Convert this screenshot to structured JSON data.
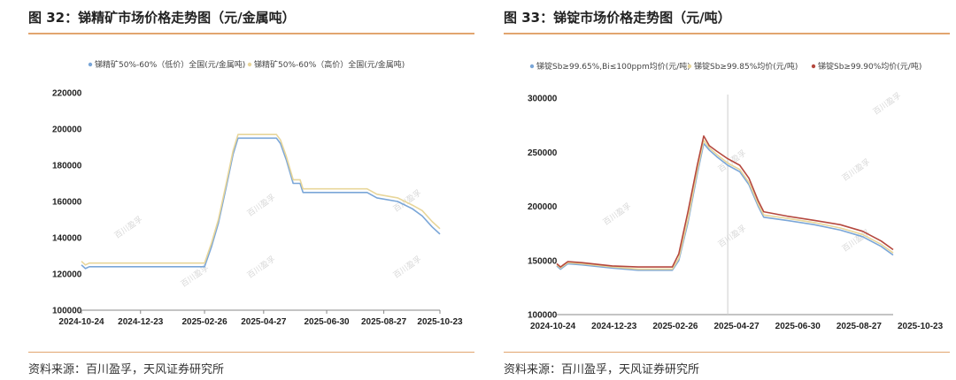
{
  "charts": [
    {
      "title": "图 32：锑精矿市场价格走势图（元/金属吨）",
      "source": "资料来源：百川盈孚，天风证券研究所",
      "watermark": "百川盈孚",
      "chart_data": {
        "type": "line",
        "xlabel": "",
        "ylabel": "",
        "x_ticks": [
          "2024-10-24",
          "2024-12-23",
          "2025-02-26",
          "2025-04-27",
          "2025-06-30",
          "2025-08-27",
          "2025-10-23"
        ],
        "y_ticks": [
          100000,
          120000,
          140000,
          160000,
          180000,
          200000,
          220000
        ],
        "x_range": [
          "2024-10-24",
          "2025-10-23"
        ],
        "ylim": [
          100000,
          220000
        ],
        "grid": false,
        "legend_position": "top",
        "series": [
          {
            "name": "锑精矿50%-60%（低价）全国(元/金属吨)",
            "color": "#7aa6d8",
            "points": [
              [
                "2024-10-24",
                125000
              ],
              [
                "2024-10-28",
                123000
              ],
              [
                "2024-11-01",
                124000
              ],
              [
                "2025-02-26",
                124000
              ],
              [
                "2025-03-05",
                135000
              ],
              [
                "2025-03-12",
                148000
              ],
              [
                "2025-03-20",
                168000
              ],
              [
                "2025-03-27",
                186000
              ],
              [
                "2025-04-01",
                195000
              ],
              [
                "2025-05-10",
                195000
              ],
              [
                "2025-05-14",
                192000
              ],
              [
                "2025-05-20",
                183000
              ],
              [
                "2025-05-27",
                170000
              ],
              [
                "2025-06-03",
                170000
              ],
              [
                "2025-06-06",
                165000
              ],
              [
                "2025-08-10",
                165000
              ],
              [
                "2025-08-20",
                162000
              ],
              [
                "2025-09-10",
                160000
              ],
              [
                "2025-09-25",
                156000
              ],
              [
                "2025-10-05",
                152000
              ],
              [
                "2025-10-15",
                146000
              ],
              [
                "2025-10-23",
                142000
              ]
            ]
          },
          {
            "name": "锑精矿50%-60%（高价）全国(元/金属吨)",
            "color": "#e8d69a",
            "points": [
              [
                "2024-10-24",
                127000
              ],
              [
                "2024-10-28",
                125000
              ],
              [
                "2024-11-01",
                126000
              ],
              [
                "2025-02-26",
                126000
              ],
              [
                "2025-03-05",
                137000
              ],
              [
                "2025-03-12",
                150000
              ],
              [
                "2025-03-20",
                170000
              ],
              [
                "2025-03-27",
                188000
              ],
              [
                "2025-04-01",
                197000
              ],
              [
                "2025-05-10",
                197000
              ],
              [
                "2025-05-14",
                194000
              ],
              [
                "2025-05-20",
                185000
              ],
              [
                "2025-05-27",
                172000
              ],
              [
                "2025-06-03",
                172000
              ],
              [
                "2025-06-06",
                167000
              ],
              [
                "2025-08-10",
                167000
              ],
              [
                "2025-08-20",
                164000
              ],
              [
                "2025-09-10",
                162000
              ],
              [
                "2025-09-25",
                158000
              ],
              [
                "2025-10-05",
                155000
              ],
              [
                "2025-10-15",
                149000
              ],
              [
                "2025-10-23",
                145000
              ]
            ]
          }
        ]
      }
    },
    {
      "title": "图 33：锑锭市场价格走势图（元/吨）",
      "source": "资料来源：百川盈孚，天风证券研究所",
      "watermark": "百川盈孚",
      "chart_data": {
        "type": "line",
        "xlabel": "",
        "ylabel": "",
        "x_ticks": [
          "2024-10-24",
          "2024-12-23",
          "2025-02-26",
          "2025-04-27",
          "2025-06-30",
          "2025-08-27",
          "2025-10-23"
        ],
        "y_ticks": [
          100000,
          150000,
          200000,
          250000,
          300000
        ],
        "x_range": [
          "2024-10-24",
          "2025-10-23"
        ],
        "ylim": [
          100000,
          300000
        ],
        "grid": false,
        "legend_position": "top",
        "series": [
          {
            "name": "锑锭Sb≥99.65%,Bi≤100ppm均价(元/吨)",
            "color": "#7aa6d8",
            "points": [
              [
                "2024-10-24",
                145000
              ],
              [
                "2024-10-28",
                142000
              ],
              [
                "2024-11-05",
                147000
              ],
              [
                "2024-11-20",
                146000
              ],
              [
                "2024-12-23",
                143000
              ],
              [
                "2025-01-20",
                141000
              ],
              [
                "2025-02-26",
                141000
              ],
              [
                "2025-03-05",
                150000
              ],
              [
                "2025-03-15",
                185000
              ],
              [
                "2025-03-25",
                230000
              ],
              [
                "2025-04-01",
                258000
              ],
              [
                "2025-04-07",
                252000
              ],
              [
                "2025-04-15",
                246000
              ],
              [
                "2025-04-27",
                238000
              ],
              [
                "2025-05-10",
                232000
              ],
              [
                "2025-05-20",
                220000
              ],
              [
                "2025-05-30",
                200000
              ],
              [
                "2025-06-05",
                190000
              ],
              [
                "2025-06-30",
                187000
              ],
              [
                "2025-07-30",
                183000
              ],
              [
                "2025-08-27",
                178000
              ],
              [
                "2025-09-20",
                172000
              ],
              [
                "2025-10-10",
                163000
              ],
              [
                "2025-10-23",
                155000
              ]
            ]
          },
          {
            "name": "锑锭Sb≥99.85%均价(元/吨)",
            "color": "#e8d69a",
            "points": [
              [
                "2024-10-24",
                146000
              ],
              [
                "2024-10-28",
                143000
              ],
              [
                "2024-11-05",
                148000
              ],
              [
                "2024-11-20",
                147000
              ],
              [
                "2024-12-23",
                144000
              ],
              [
                "2025-01-20",
                142000
              ],
              [
                "2025-02-26",
                142000
              ],
              [
                "2025-03-05",
                152000
              ],
              [
                "2025-03-15",
                188000
              ],
              [
                "2025-03-25",
                233000
              ],
              [
                "2025-04-01",
                261000
              ],
              [
                "2025-04-07",
                254000
              ],
              [
                "2025-04-15",
                248000
              ],
              [
                "2025-04-27",
                240000
              ],
              [
                "2025-05-10",
                234000
              ],
              [
                "2025-05-20",
                222000
              ],
              [
                "2025-05-30",
                202000
              ],
              [
                "2025-06-05",
                192000
              ],
              [
                "2025-06-30",
                189000
              ],
              [
                "2025-07-30",
                185000
              ],
              [
                "2025-08-27",
                180000
              ],
              [
                "2025-09-20",
                174000
              ],
              [
                "2025-10-10",
                165000
              ],
              [
                "2025-10-23",
                157000
              ]
            ]
          },
          {
            "name": "锑锭Sb≥99.90%均价(元/吨)",
            "color": "#b5483e",
            "points": [
              [
                "2024-10-24",
                147000
              ],
              [
                "2024-10-28",
                144000
              ],
              [
                "2024-11-05",
                149000
              ],
              [
                "2024-11-20",
                148000
              ],
              [
                "2024-12-23",
                145000
              ],
              [
                "2025-01-20",
                144000
              ],
              [
                "2025-02-26",
                144000
              ],
              [
                "2025-03-05",
                156000
              ],
              [
                "2025-03-15",
                195000
              ],
              [
                "2025-03-25",
                238000
              ],
              [
                "2025-04-01",
                265000
              ],
              [
                "2025-04-07",
                256000
              ],
              [
                "2025-04-15",
                251000
              ],
              [
                "2025-04-27",
                244000
              ],
              [
                "2025-05-10",
                238000
              ],
              [
                "2025-05-20",
                226000
              ],
              [
                "2025-05-30",
                205000
              ],
              [
                "2025-06-05",
                195000
              ],
              [
                "2025-06-30",
                191000
              ],
              [
                "2025-07-30",
                187000
              ],
              [
                "2025-08-27",
                183000
              ],
              [
                "2025-09-20",
                177000
              ],
              [
                "2025-10-10",
                168000
              ],
              [
                "2025-10-23",
                160000
              ]
            ]
          }
        ]
      }
    }
  ]
}
